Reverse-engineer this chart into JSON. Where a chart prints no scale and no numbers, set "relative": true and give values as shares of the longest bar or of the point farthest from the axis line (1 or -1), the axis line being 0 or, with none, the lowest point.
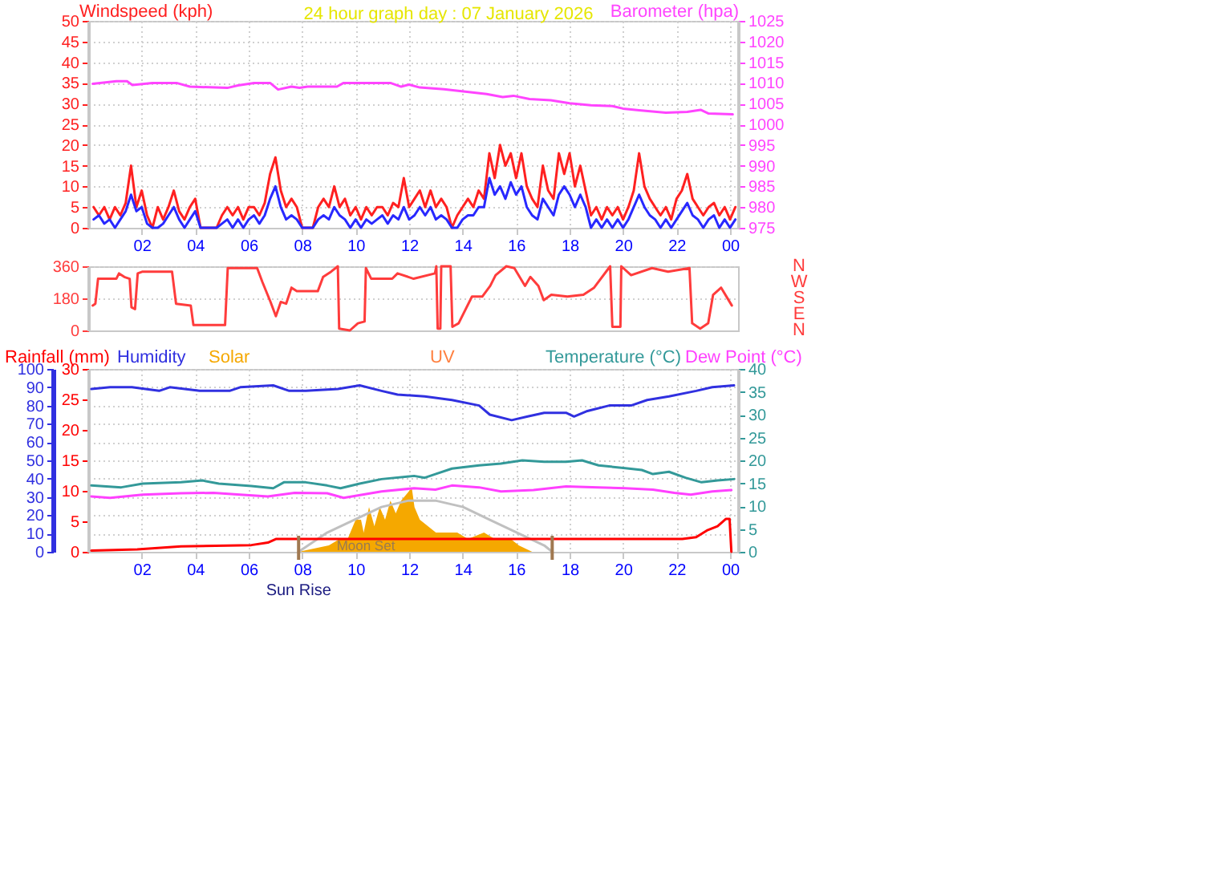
{
  "chart_data": [
    {
      "type": "line",
      "title": "24 hour graph day : 07 January 2026",
      "ylabel": "Windspeed (kph)",
      "y2label": "Barometer (hpa)",
      "x": [
        "2026-01-07T00:12",
        "2026-01-07T00:24",
        "2026-01-07T00:36",
        "2026-01-07T00:48",
        "2026-01-07T01:00",
        "2026-01-07T01:12",
        "2026-01-07T01:24",
        "2026-01-07T01:36",
        "2026-01-07T01:48",
        "2026-01-07T02:00",
        "2026-01-07T02:12",
        "2026-01-07T02:24",
        "2026-01-07T02:36",
        "2026-01-07T02:48",
        "2026-01-07T03:00",
        "2026-01-07T03:12",
        "2026-01-07T03:24",
        "2026-01-07T03:36",
        "2026-01-07T03:48",
        "2026-01-07T04:00",
        "2026-01-07T04:12",
        "2026-01-07T04:24",
        "2026-01-07T04:36",
        "2026-01-07T04:48",
        "2026-01-07T05:00",
        "2026-01-07T05:12",
        "2026-01-07T05:24",
        "2026-01-07T05:36",
        "2026-01-07T05:48",
        "2026-01-07T06:00",
        "2026-01-07T06:12",
        "2026-01-07T06:24",
        "2026-01-07T06:36",
        "2026-01-07T06:48",
        "2026-01-07T07:00",
        "2026-01-07T07:12",
        "2026-01-07T07:24",
        "2026-01-07T07:36",
        "2026-01-07T07:48",
        "2026-01-07T08:00",
        "2026-01-07T08:12",
        "2026-01-07T08:24",
        "2026-01-07T08:36",
        "2026-01-07T08:48",
        "2026-01-07T09:00",
        "2026-01-07T09:12",
        "2026-01-07T09:24",
        "2026-01-07T09:36",
        "2026-01-07T09:48",
        "2026-01-07T10:00",
        "2026-01-07T10:12",
        "2026-01-07T10:24",
        "2026-01-07T10:36",
        "2026-01-07T10:48",
        "2026-01-07T11:00",
        "2026-01-07T11:12",
        "2026-01-07T11:24",
        "2026-01-07T11:36",
        "2026-01-07T11:48",
        "2026-01-07T12:00",
        "2026-01-07T12:12",
        "2026-01-07T12:24",
        "2026-01-07T12:36",
        "2026-01-07T12:48",
        "2026-01-07T13:00",
        "2026-01-07T13:12",
        "2026-01-07T13:24",
        "2026-01-07T13:36",
        "2026-01-07T13:48",
        "2026-01-07T14:00",
        "2026-01-07T14:12",
        "2026-01-07T14:24",
        "2026-01-07T14:36",
        "2026-01-07T14:48",
        "2026-01-07T15:00",
        "2026-01-07T15:12",
        "2026-01-07T15:24",
        "2026-01-07T15:36",
        "2026-01-07T15:48",
        "2026-01-07T16:00",
        "2026-01-07T16:12",
        "2026-01-07T16:24",
        "2026-01-07T16:36",
        "2026-01-07T16:48",
        "2026-01-07T17:00",
        "2026-01-07T17:12",
        "2026-01-07T17:24",
        "2026-01-07T17:36",
        "2026-01-07T17:48",
        "2026-01-07T18:00",
        "2026-01-07T18:12",
        "2026-01-07T18:24",
        "2026-01-07T18:36",
        "2026-01-07T18:48",
        "2026-01-07T19:00",
        "2026-01-07T19:12",
        "2026-01-07T19:24",
        "2026-01-07T19:36",
        "2026-01-07T19:48",
        "2026-01-07T20:00",
        "2026-01-07T20:12",
        "2026-01-07T20:24",
        "2026-01-07T20:36",
        "2026-01-07T20:48",
        "2026-01-07T21:00",
        "2026-01-07T21:12",
        "2026-01-07T21:24",
        "2026-01-07T21:36",
        "2026-01-07T21:48",
        "2026-01-07T22:00",
        "2026-01-07T22:12",
        "2026-01-07T22:24",
        "2026-01-07T22:36",
        "2026-01-07T22:48",
        "2026-01-07T23:00",
        "2026-01-07T23:12",
        "2026-01-07T23:24",
        "2026-01-07T23:36",
        "2026-01-07T23:48",
        "2026-01-08T00:00",
        "2026-01-08T00:12"
      ],
      "xlim": [
        "2026-01-07T00:00",
        "2026-01-08T00:18"
      ],
      "xticks": [
        {
          "value": "2026-01-07T02:00",
          "label": "02"
        },
        {
          "value": "2026-01-07T04:00",
          "label": "04"
        },
        {
          "value": "2026-01-07T06:00",
          "label": "06"
        },
        {
          "value": "2026-01-07T08:00",
          "label": "08"
        },
        {
          "value": "2026-01-07T10:00",
          "label": "10"
        },
        {
          "value": "2026-01-07T12:00",
          "label": "12"
        },
        {
          "value": "2026-01-07T14:00",
          "label": "14"
        },
        {
          "value": "2026-01-07T16:00",
          "label": "16"
        },
        {
          "value": "2026-01-07T18:00",
          "label": "18"
        },
        {
          "value": "2026-01-07T20:00",
          "label": "20"
        },
        {
          "value": "2026-01-07T22:00",
          "label": "22"
        },
        {
          "value": "2026-01-08T00:00",
          "label": "00"
        }
      ],
      "ylim": [
        0,
        50
      ],
      "yticks": [
        0,
        5,
        10,
        15,
        20,
        25,
        30,
        35,
        40,
        45,
        50
      ],
      "y2lim": [
        975,
        1025
      ],
      "y2ticks": [
        975,
        980,
        985,
        990,
        995,
        1000,
        1005,
        1010,
        1015,
        1020,
        1025
      ],
      "grid": true,
      "series": [
        {
          "color": "#ff2020",
          "values": [
            5,
            3,
            5,
            2,
            5,
            3,
            6,
            15,
            5,
            9,
            3,
            0,
            5,
            2,
            5,
            9,
            4,
            2,
            5,
            7,
            0,
            0,
            0,
            0,
            3,
            5,
            3,
            5,
            2,
            5,
            5,
            3,
            6,
            13,
            17,
            9,
            5,
            7,
            5,
            0,
            0,
            0,
            5,
            7,
            5,
            10,
            5,
            7,
            3,
            5,
            2,
            5,
            3,
            5,
            5,
            3,
            6,
            5,
            12,
            5,
            7,
            9,
            5,
            9,
            5,
            7,
            5,
            0,
            3,
            5,
            7,
            5,
            9,
            7,
            18,
            12,
            20,
            15,
            18,
            12,
            18,
            10,
            7,
            5,
            15,
            9,
            7,
            18,
            13,
            18,
            10,
            15,
            9,
            3,
            5,
            2,
            5,
            3,
            5,
            2,
            5,
            9,
            18,
            10,
            7,
            5,
            3,
            5,
            2,
            7,
            9,
            13,
            7,
            5,
            3,
            5,
            6,
            3,
            5,
            2,
            5
          ]
        },
        {
          "color": "#2828ff",
          "values": [
            2,
            3,
            1,
            2,
            0,
            2,
            4,
            8,
            4,
            5,
            1,
            0,
            0,
            1,
            3,
            5,
            2,
            0,
            2,
            4,
            0,
            0,
            0,
            0,
            1,
            2,
            0,
            2,
            0,
            2,
            3,
            1,
            3,
            7,
            10,
            5,
            2,
            3,
            2,
            0,
            0,
            0,
            2,
            3,
            2,
            5,
            3,
            2,
            0,
            2,
            0,
            2,
            1,
            2,
            3,
            1,
            3,
            2,
            5,
            2,
            3,
            5,
            3,
            5,
            2,
            3,
            2,
            0,
            0,
            2,
            3,
            3,
            5,
            5,
            12,
            8,
            10,
            7,
            11,
            8,
            10,
            5,
            3,
            2,
            7,
            5,
            3,
            8,
            10,
            8,
            5,
            8,
            5,
            0,
            2,
            0,
            2,
            0,
            2,
            0,
            2,
            5,
            8,
            5,
            3,
            2,
            0,
            2,
            0,
            2,
            4,
            6,
            3,
            2,
            0,
            2,
            3,
            0,
            2,
            0,
            2
          ]
        },
        {
          "color": "#ff44ff",
          "axis": "y2",
          "x": [
            "2026-01-07T00:10",
            "2026-01-07T01:03",
            "2026-01-07T01:27",
            "2026-01-07T01:39",
            "2026-01-07T02:24",
            "2026-01-07T03:18",
            "2026-01-07T03:48",
            "2026-01-07T05:12",
            "2026-01-07T05:36",
            "2026-01-07T06:12",
            "2026-01-07T06:48",
            "2026-01-07T07:06",
            "2026-01-07T07:36",
            "2026-01-07T07:54",
            "2026-01-07T08:12",
            "2026-01-07T09:18",
            "2026-01-07T09:33",
            "2026-01-07T11:18",
            "2026-01-07T11:42",
            "2026-01-07T12:00",
            "2026-01-07T12:24",
            "2026-01-07T13:18",
            "2026-01-07T14:06",
            "2026-01-07T14:54",
            "2026-01-07T15:30",
            "2026-01-07T15:54",
            "2026-01-07T16:30",
            "2026-01-07T17:18",
            "2026-01-07T18:00",
            "2026-01-07T18:48",
            "2026-01-07T19:36",
            "2026-01-07T20:00",
            "2026-01-07T20:36",
            "2026-01-07T21:36",
            "2026-01-07T22:24",
            "2026-01-07T22:54",
            "2026-01-07T23:12",
            "2026-01-08T00:06"
          ],
          "values": [
            1009.8,
            1010.4,
            1010.4,
            1009.5,
            1010,
            1010,
            1009.1,
            1008.8,
            1009.4,
            1010,
            1010,
            1008.4,
            1009.1,
            1008.8,
            1009.1,
            1009.1,
            1010,
            1010,
            1009.1,
            1009.6,
            1008.9,
            1008.5,
            1007.9,
            1007.3,
            1006.6,
            1006.9,
            1006.1,
            1005.8,
            1005.1,
            1004.6,
            1004.4,
            1003.8,
            1003.4,
            1002.8,
            1003,
            1003.5,
            1002.6,
            1002.4
          ]
        }
      ]
    },
    {
      "type": "line",
      "xlim": [
        "2026-01-07T00:00",
        "2026-01-08T00:18"
      ],
      "ylim": [
        0,
        360
      ],
      "yticks": [
        0,
        180,
        360
      ],
      "grid": "y",
      "tick_labels": "y",
      "annotations": [
        "N",
        "W",
        "S",
        "E",
        "N"
      ],
      "series": [
        {
          "color": "#ff3c3c",
          "x": [
            "2026-01-07T00:10",
            "2026-01-07T00:16",
            "2026-01-07T00:22",
            "2026-01-07T01:03",
            "2026-01-07T01:09",
            "2026-01-07T01:21",
            "2026-01-07T01:33",
            "2026-01-07T01:37",
            "2026-01-07T01:45",
            "2026-01-07T01:51",
            "2026-01-07T02:02",
            "2026-01-07T03:08",
            "2026-01-07T03:17",
            "2026-01-07T03:50",
            "2026-01-07T03:56",
            "2026-01-07T05:07",
            "2026-01-07T05:13",
            "2026-01-07T06:19",
            "2026-01-07T06:31",
            "2026-01-07T06:49",
            "2026-01-07T07:01",
            "2026-01-07T07:12",
            "2026-01-07T07:24",
            "2026-01-07T07:36",
            "2026-01-07T07:48",
            "2026-01-07T08:35",
            "2026-01-07T08:47",
            "2026-01-07T09:05",
            "2026-01-07T09:20",
            "2026-01-07T09:23",
            "2026-01-07T09:47",
            "2026-01-07T10:05",
            "2026-01-07T10:20",
            "2026-01-07T10:23",
            "2026-01-07T10:35",
            "2026-01-07T11:22",
            "2026-01-07T11:34",
            "2026-01-07T12:10",
            "2026-01-07T12:58",
            "2026-01-07T13:01",
            "2026-01-07T13:04",
            "2026-01-07T13:10",
            "2026-01-07T13:12",
            "2026-01-07T13:33",
            "2026-01-07T13:37",
            "2026-01-07T13:51",
            "2026-01-07T14:21",
            "2026-01-07T14:44",
            "2026-01-07T15:02",
            "2026-01-07T15:14",
            "2026-01-07T15:38",
            "2026-01-07T15:56",
            "2026-01-07T16:20",
            "2026-01-07T16:32",
            "2026-01-07T16:50",
            "2026-01-07T17:02",
            "2026-01-07T17:19",
            "2026-01-07T17:55",
            "2026-01-07T18:31",
            "2026-01-07T18:55",
            "2026-01-07T19:31",
            "2026-01-07T19:36",
            "2026-01-07T19:54",
            "2026-01-07T19:56",
            "2026-01-07T20:18",
            "2026-01-07T21:05",
            "2026-01-07T21:41",
            "2026-01-07T22:29",
            "2026-01-07T22:35",
            "2026-01-07T22:53",
            "2026-01-07T23:11",
            "2026-01-07T23:22",
            "2026-01-07T23:40",
            "2026-01-08T00:04"
          ],
          "values": [
            140,
            150,
            290,
            290,
            320,
            300,
            290,
            130,
            120,
            320,
            330,
            330,
            150,
            140,
            30,
            30,
            350,
            350,
            270,
            160,
            80,
            160,
            150,
            240,
            220,
            220,
            300,
            330,
            360,
            10,
            0,
            40,
            50,
            350,
            290,
            290,
            320,
            290,
            320,
            360,
            10,
            10,
            360,
            360,
            20,
            40,
            190,
            190,
            250,
            310,
            360,
            350,
            250,
            300,
            250,
            170,
            200,
            190,
            200,
            240,
            360,
            20,
            20,
            360,
            310,
            350,
            330,
            350,
            40,
            10,
            40,
            200,
            240,
            140
          ]
        }
      ]
    },
    {
      "type": "line",
      "xlim": [
        "2026-01-07T00:00",
        "2026-01-08T00:18"
      ],
      "xticks": [
        {
          "value": "2026-01-07T02:00",
          "label": "02"
        },
        {
          "value": "2026-01-07T04:00",
          "label": "04"
        },
        {
          "value": "2026-01-07T06:00",
          "label": "06"
        },
        {
          "value": "2026-01-07T08:00",
          "label": "08"
        },
        {
          "value": "2026-01-07T10:00",
          "label": "10"
        },
        {
          "value": "2026-01-07T12:00",
          "label": "12"
        },
        {
          "value": "2026-01-07T14:00",
          "label": "14"
        },
        {
          "value": "2026-01-07T16:00",
          "label": "16"
        },
        {
          "value": "2026-01-07T18:00",
          "label": "18"
        },
        {
          "value": "2026-01-07T20:00",
          "label": "20"
        },
        {
          "value": "2026-01-07T22:00",
          "label": "22"
        },
        {
          "value": "2026-01-08T00:00",
          "label": "00"
        }
      ],
      "ylim": [
        0,
        100
      ],
      "yticks": [
        0,
        10,
        20,
        30,
        40,
        50,
        60,
        70,
        80,
        90,
        100
      ],
      "y2lim": [
        0,
        40
      ],
      "y2ticks": [
        0,
        5,
        10,
        15,
        20,
        25,
        30,
        35,
        40
      ],
      "y3lim": [
        0,
        30
      ],
      "y3ticks": [
        0,
        5,
        10,
        15,
        20,
        25,
        30
      ],
      "grid": true,
      "series": [
        {
          "name": "Rainfall (mm)",
          "color": "#ff0000",
          "axis": "y3",
          "x": [
            "2026-01-07T00:07",
            "2026-01-07T01:50",
            "2026-01-07T03:28",
            "2026-01-07T06:06",
            "2026-01-07T06:43",
            "2026-01-07T07:01",
            "2026-01-07T22:13",
            "2026-01-07T22:44",
            "2026-01-07T23:08",
            "2026-01-07T23:32",
            "2026-01-07T23:51",
            "2026-01-07T23:59",
            "2026-01-08T00:03"
          ],
          "values": [
            0.2,
            0.4,
            0.9,
            1.1,
            1.5,
            2.1,
            2.1,
            2.4,
            3.5,
            4.2,
            5.4,
            5.4,
            0
          ]
        },
        {
          "name": "Humidity",
          "color": "#3030e0",
          "x": [
            "2026-01-07T00:07",
            "2026-01-07T00:49",
            "2026-01-07T01:38",
            "2026-01-07T02:39",
            "2026-01-07T03:03",
            "2026-01-07T04:10",
            "2026-01-07T05:17",
            "2026-01-07T05:41",
            "2026-01-07T06:55",
            "2026-01-07T07:31",
            "2026-01-07T08:08",
            "2026-01-07T09:20",
            "2026-01-07T10:09",
            "2026-01-07T10:58",
            "2026-01-07T11:34",
            "2026-01-07T12:35",
            "2026-01-07T13:36",
            "2026-01-07T14:37",
            "2026-01-07T15:01",
            "2026-01-07T15:50",
            "2026-01-07T16:26",
            "2026-01-07T17:03",
            "2026-01-07T17:52",
            "2026-01-07T18:10",
            "2026-01-07T18:40",
            "2026-01-07T19:29",
            "2026-01-07T20:18",
            "2026-01-07T20:54",
            "2026-01-07T21:43",
            "2026-01-07T22:44",
            "2026-01-07T23:20",
            "2026-01-08T00:09"
          ],
          "values": [
            89,
            90,
            90,
            88,
            90,
            88,
            88,
            90,
            91,
            88,
            88,
            89,
            91,
            88,
            86,
            85,
            83,
            80,
            75,
            72,
            74,
            76,
            76,
            74,
            77,
            80,
            80,
            83,
            85,
            88,
            90,
            91
          ]
        },
        {
          "name": "Temperature (°C)",
          "color": "#339999",
          "axis": "y2",
          "x": [
            "2026-01-07T00:07",
            "2026-01-07T01:14",
            "2026-01-07T02:02",
            "2026-01-07T03:28",
            "2026-01-07T04:16",
            "2026-01-07T04:53",
            "2026-01-07T06:06",
            "2026-01-07T06:55",
            "2026-01-07T07:19",
            "2026-01-07T08:08",
            "2026-01-07T08:56",
            "2026-01-07T09:26",
            "2026-01-07T10:09",
            "2026-01-07T10:58",
            "2026-01-07T12:11",
            "2026-01-07T12:35",
            "2026-01-07T12:59",
            "2026-01-07T13:36",
            "2026-01-07T14:37",
            "2026-01-07T15:26",
            "2026-01-07T16:14",
            "2026-01-07T17:03",
            "2026-01-07T17:52",
            "2026-01-07T18:28",
            "2026-01-07T19:05",
            "2026-01-07T20:05",
            "2026-01-07T20:42",
            "2026-01-07T21:07",
            "2026-01-07T21:43",
            "2026-01-07T22:20",
            "2026-01-07T22:56",
            "2026-01-07T23:32",
            "2026-01-08T00:09"
          ],
          "values": [
            14.5,
            14.1,
            14.9,
            15.2,
            15.6,
            14.9,
            14.4,
            13.9,
            15.2,
            15.2,
            14.5,
            13.9,
            14.9,
            15.9,
            16.6,
            16.2,
            17,
            18.2,
            18.9,
            19.3,
            20,
            19.7,
            19.7,
            20,
            18.9,
            18.3,
            17.9,
            17,
            17.5,
            16.2,
            15.2,
            15.6,
            15.9
          ]
        },
        {
          "name": "Dew Point (°C)",
          "color": "#ff40ff",
          "axis": "y2",
          "x": [
            "2026-01-07T00:07",
            "2026-01-07T00:49",
            "2026-01-07T02:02",
            "2026-01-07T03:28",
            "2026-01-07T04:41",
            "2026-01-07T05:41",
            "2026-01-07T06:43",
            "2026-01-07T07:43",
            "2026-01-07T08:56",
            "2026-01-07T09:33",
            "2026-01-07T10:58",
            "2026-01-07T12:11",
            "2026-01-07T12:59",
            "2026-01-07T13:36",
            "2026-01-07T14:37",
            "2026-01-07T15:26",
            "2026-01-07T16:39",
            "2026-01-07T17:52",
            "2026-01-07T19:05",
            "2026-01-07T20:05",
            "2026-01-07T21:07",
            "2026-01-07T21:55",
            "2026-01-07T22:32",
            "2026-01-07T23:20",
            "2026-01-08T00:03"
          ],
          "values": [
            12.1,
            11.8,
            12.5,
            12.8,
            12.9,
            12.5,
            12.1,
            12.9,
            12.8,
            11.8,
            13.2,
            13.9,
            13.6,
            14.5,
            14.1,
            13.2,
            13.5,
            14.3,
            14.1,
            13.9,
            13.6,
            12.9,
            12.5,
            13.2,
            13.5
          ]
        }
      ],
      "ref_lines": [
        {
          "axis": "x",
          "value": "2026-01-07T07:52",
          "label": "Sun Rise",
          "color": "#a07850"
        },
        {
          "axis": "x",
          "value": "2026-01-07T17:21",
          "color": "#a07850"
        }
      ],
      "annotations": [
        "UV",
        "Moon Set"
      ]
    },
    {
      "type": "area",
      "relative": true,
      "xlim": [
        "2026-01-07T00:00",
        "2026-01-08T00:18"
      ],
      "series": [
        {
          "name": "Solar",
          "color": "#f5a800",
          "x": [
            "2026-01-07T07:52",
            "2026-01-07T09:00",
            "2026-01-07T09:24",
            "2026-01-07T09:42",
            "2026-01-07T10:00",
            "2026-01-07T10:12",
            "2026-01-07T10:18",
            "2026-01-07T10:30",
            "2026-01-07T10:42",
            "2026-01-07T10:54",
            "2026-01-07T11:06",
            "2026-01-07T11:18",
            "2026-01-07T11:30",
            "2026-01-07T11:42",
            "2026-01-07T11:54",
            "2026-01-07T12:06",
            "2026-01-07T12:12",
            "2026-01-07T12:24",
            "2026-01-07T12:42",
            "2026-01-07T13:00",
            "2026-01-07T13:24",
            "2026-01-07T13:48",
            "2026-01-07T14:12",
            "2026-01-07T14:48",
            "2026-01-07T15:12",
            "2026-01-07T15:48",
            "2026-01-07T16:06",
            "2026-01-07T16:36"
          ],
          "values": [
            0,
            0.1,
            0.2,
            0.2,
            0.5,
            0.5,
            0.3,
            0.7,
            0.4,
            0.7,
            0.5,
            0.8,
            0.6,
            0.8,
            0.9,
            1,
            0.7,
            0.5,
            0.4,
            0.3,
            0.3,
            0.3,
            0.2,
            0.3,
            0.2,
            0.2,
            0.1,
            0
          ]
        },
        {
          "type": "line",
          "color": "#c0c0c0",
          "x": [
            "2026-01-07T07:52",
            "2026-01-07T08:56",
            "2026-01-07T09:57",
            "2026-01-07T10:58",
            "2026-01-07T11:59",
            "2026-01-07T12:23",
            "2026-01-07T12:59",
            "2026-01-07T14:01",
            "2026-01-07T15:01",
            "2026-01-07T16:02",
            "2026-01-07T17:03",
            "2026-01-07T17:21"
          ],
          "values": [
            0,
            0.3,
            0.5,
            0.7,
            0.8,
            0.8,
            0.8,
            0.7,
            0.5,
            0.3,
            0.1,
            0
          ]
        }
      ]
    }
  ]
}
